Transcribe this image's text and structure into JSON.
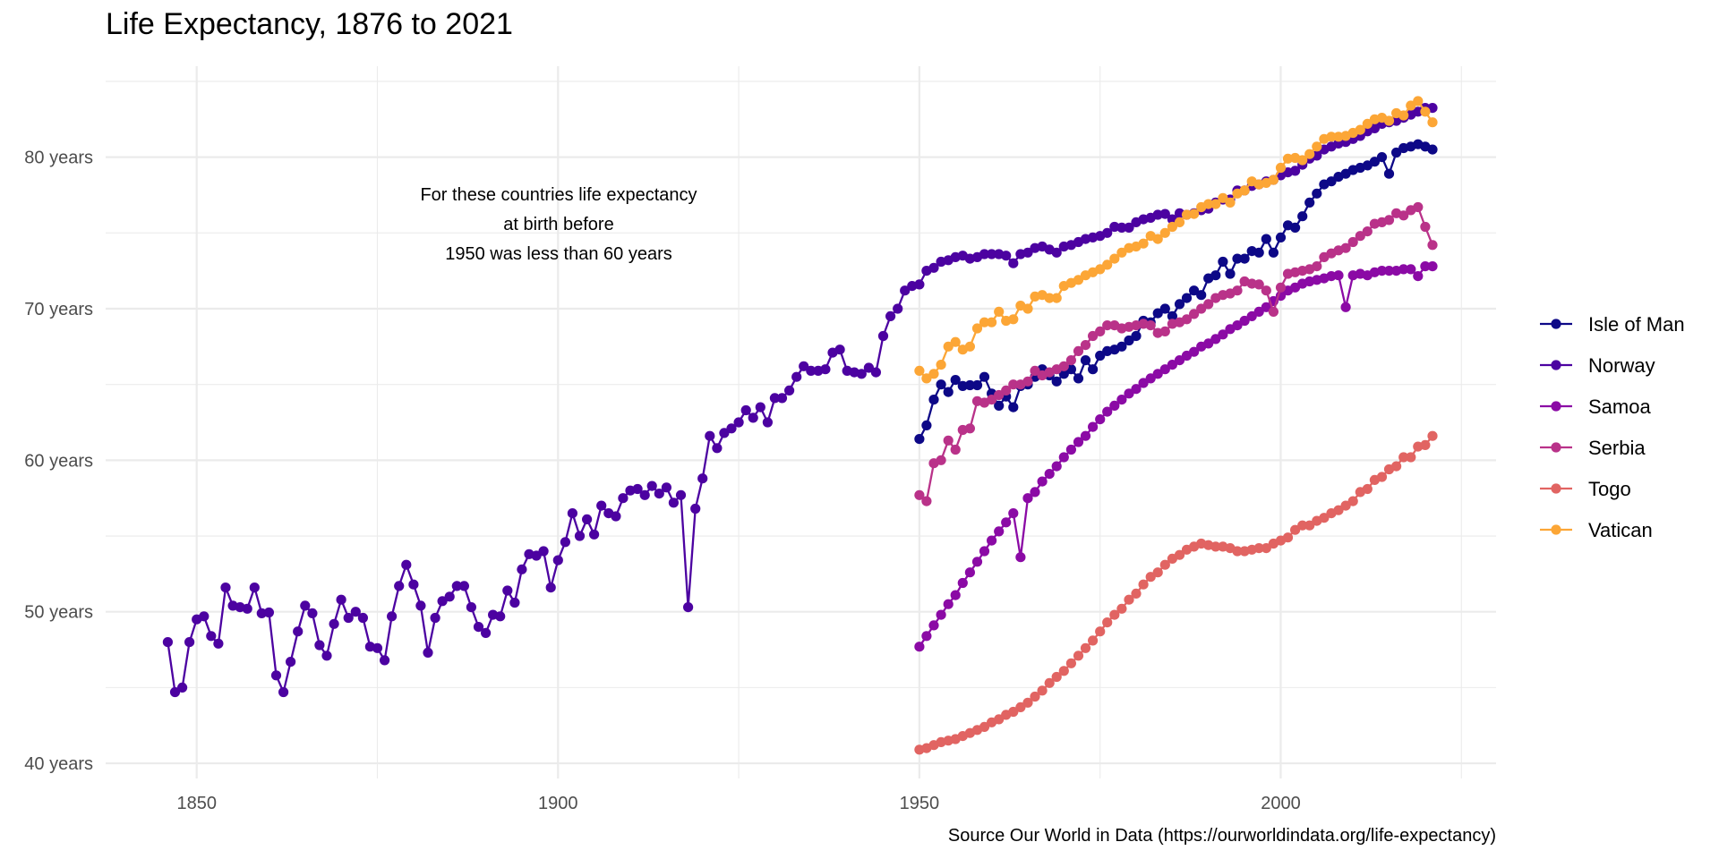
{
  "chart_data": {
    "type": "line",
    "title": "Life Expectancy, 1876 to 2021",
    "xlabel": "",
    "ylabel": "",
    "caption": "Source Our World in Data (https://ourworldindata.org/life-expectancy)",
    "annotation": [
      "For these countries life expectancy",
      "at birth before",
      "1950 was less than 60 years"
    ],
    "annotation_at": {
      "x": 1900,
      "y": 75.9
    },
    "xlim": [
      1837.4,
      2029.8
    ],
    "ylim": [
      39.0,
      86.0
    ],
    "x_ticks": [
      1850,
      1900,
      1950,
      2000
    ],
    "x_tick_labels": [
      "1850",
      "1900",
      "1950",
      "2000"
    ],
    "x_minor_ticks": [
      1875,
      1925,
      1975,
      2025
    ],
    "y_ticks": [
      40,
      50,
      60,
      70,
      80
    ],
    "y_tick_labels": [
      "40 years",
      "50 years",
      "60 years",
      "70 years",
      "80 years"
    ],
    "y_minor_ticks": [
      45,
      55,
      65,
      75,
      85
    ],
    "grid": true,
    "legend_position": "right",
    "series": [
      {
        "name": "Isle of Man",
        "color": "#0d0887",
        "x_start": 1950,
        "values": [
          61.4,
          62.3,
          64.0,
          65.0,
          64.5,
          65.3,
          64.9,
          64.95,
          64.95,
          65.5,
          64.4,
          63.6,
          64.2,
          63.5,
          64.9,
          65.0,
          65.5,
          66.0,
          65.6,
          65.2,
          65.7,
          66.0,
          65.4,
          66.6,
          66.0,
          66.9,
          67.2,
          67.3,
          67.5,
          67.9,
          68.2,
          69.2,
          69.1,
          69.7,
          70.0,
          69.5,
          70.3,
          70.7,
          71.2,
          70.9,
          72.0,
          72.2,
          73.1,
          72.3,
          73.3,
          73.3,
          73.8,
          73.7,
          74.6,
          73.7,
          74.7,
          75.5,
          75.35,
          76.1,
          77.0,
          77.6,
          78.2,
          78.4,
          78.7,
          78.9,
          79.15,
          79.3,
          79.45,
          79.7,
          80.0,
          78.9,
          80.3,
          80.6,
          80.7,
          80.85,
          80.7,
          80.5
        ]
      },
      {
        "name": "Norway",
        "color": "#4c02a1",
        "x_start": 1846,
        "values": [
          48.0,
          44.7,
          45.0,
          48.0,
          49.5,
          49.7,
          48.4,
          47.9,
          51.6,
          50.4,
          50.3,
          50.2,
          51.6,
          49.9,
          49.95,
          45.8,
          44.7,
          46.7,
          48.7,
          50.4,
          49.9,
          47.8,
          47.1,
          49.2,
          50.8,
          49.6,
          50.0,
          49.6,
          47.7,
          47.6,
          46.8,
          49.7,
          51.7,
          53.1,
          51.8,
          50.4,
          47.3,
          49.6,
          50.7,
          51.0,
          51.7,
          51.7,
          50.3,
          49.0,
          48.6,
          49.8,
          49.7,
          51.4,
          50.6,
          52.8,
          53.8,
          53.7,
          54.0,
          51.6,
          53.4,
          54.6,
          56.5,
          55.0,
          56.1,
          55.1,
          57.0,
          56.5,
          56.3,
          57.5,
          58.0,
          58.1,
          57.7,
          58.3,
          57.8,
          58.2,
          57.2,
          57.7,
          50.3,
          56.8,
          58.8,
          61.6,
          60.8,
          61.8,
          62.1,
          62.5,
          63.3,
          62.8,
          63.5,
          62.5,
          64.1,
          64.1,
          64.6,
          65.5,
          66.2,
          65.9,
          65.9,
          66.0,
          67.1,
          67.3,
          65.9,
          65.8,
          65.7,
          66.1,
          65.8,
          68.2,
          69.5,
          70.0,
          71.2,
          71.5,
          71.6,
          72.5,
          72.7,
          73.1,
          73.2,
          73.4,
          73.5,
          73.3,
          73.4,
          73.6,
          73.6,
          73.6,
          73.5,
          73.0,
          73.6,
          73.7,
          74.0,
          74.1,
          73.9,
          73.7,
          74.1,
          74.2,
          74.4,
          74.6,
          74.7,
          74.8,
          75.0,
          75.4,
          75.35,
          75.35,
          75.7,
          75.9,
          76.0,
          76.2,
          76.25,
          75.9,
          76.3,
          76.2,
          76.3,
          76.5,
          76.6,
          77.0,
          77.2,
          77.2,
          77.8,
          77.8,
          78.1,
          78.2,
          78.4,
          78.5,
          78.8,
          79.0,
          79.1,
          79.5,
          79.9,
          80.1,
          80.5,
          80.7,
          80.9,
          81.0,
          81.2,
          81.4,
          81.7,
          81.9,
          82.2,
          82.3,
          82.4,
          82.6,
          82.8,
          83.0,
          83.25,
          83.25
        ]
      },
      {
        "name": "Samoa",
        "color": "#8b0aa5",
        "x_start": 1950,
        "values": [
          47.7,
          48.4,
          49.1,
          49.8,
          50.5,
          51.1,
          51.9,
          52.6,
          53.3,
          54.0,
          54.7,
          55.3,
          55.9,
          56.5,
          53.6,
          57.5,
          57.9,
          58.6,
          59.1,
          59.6,
          60.2,
          60.7,
          61.2,
          61.6,
          62.2,
          62.7,
          63.2,
          63.6,
          64.0,
          64.4,
          64.7,
          65.1,
          65.4,
          65.7,
          66.0,
          66.3,
          66.6,
          66.9,
          67.15,
          67.5,
          67.7,
          68.0,
          68.3,
          68.65,
          68.9,
          69.2,
          69.5,
          69.8,
          70.1,
          70.5,
          70.85,
          71.2,
          71.4,
          71.65,
          71.8,
          71.9,
          72.0,
          72.15,
          72.2,
          70.1,
          72.2,
          72.3,
          72.2,
          72.4,
          72.5,
          72.5,
          72.5,
          72.6,
          72.6,
          72.15,
          72.8,
          72.8
        ]
      },
      {
        "name": "Serbia",
        "color": "#b93289",
        "x_start": 1950,
        "values": [
          57.7,
          57.3,
          59.8,
          60.0,
          61.3,
          60.7,
          62.0,
          62.1,
          63.9,
          63.8,
          64.0,
          64.3,
          64.6,
          65.0,
          65.0,
          65.2,
          65.9,
          65.6,
          65.8,
          66.0,
          66.2,
          66.6,
          67.2,
          67.6,
          68.2,
          68.5,
          68.9,
          68.9,
          68.7,
          68.8,
          68.9,
          69.0,
          68.9,
          68.4,
          68.5,
          69.0,
          69.1,
          69.3,
          69.65,
          70.0,
          70.3,
          70.7,
          70.9,
          71.0,
          71.2,
          71.8,
          71.65,
          71.6,
          71.2,
          69.8,
          71.4,
          72.3,
          72.4,
          72.5,
          72.6,
          72.8,
          73.4,
          73.65,
          73.85,
          74.0,
          74.4,
          74.8,
          75.1,
          75.6,
          75.7,
          75.85,
          76.3,
          76.15,
          76.5,
          76.7,
          75.4,
          74.2
        ]
      },
      {
        "name": "Togo",
        "color": "#e16462",
        "x_start": 1950,
        "values": [
          40.9,
          41.0,
          41.2,
          41.4,
          41.5,
          41.6,
          41.8,
          42.0,
          42.2,
          42.4,
          42.7,
          42.9,
          43.2,
          43.4,
          43.7,
          44.0,
          44.4,
          44.8,
          45.3,
          45.7,
          46.1,
          46.6,
          47.1,
          47.6,
          48.1,
          48.7,
          49.3,
          49.8,
          50.2,
          50.8,
          51.2,
          51.8,
          52.3,
          52.6,
          53.1,
          53.5,
          53.75,
          54.1,
          54.3,
          54.5,
          54.4,
          54.3,
          54.3,
          54.2,
          54.0,
          54.0,
          54.1,
          54.2,
          54.2,
          54.5,
          54.7,
          54.9,
          55.4,
          55.7,
          55.7,
          56.0,
          56.2,
          56.5,
          56.7,
          57.0,
          57.3,
          57.9,
          58.1,
          58.7,
          58.9,
          59.4,
          59.6,
          60.2,
          60.2,
          60.9,
          61.0,
          61.6
        ]
      },
      {
        "name": "Vatican",
        "color": "#fca636",
        "x_start": 1950,
        "values": [
          65.9,
          65.4,
          65.7,
          66.3,
          67.5,
          67.8,
          67.3,
          67.5,
          68.7,
          69.1,
          69.1,
          69.8,
          69.2,
          69.3,
          70.2,
          70.0,
          70.8,
          70.9,
          70.7,
          70.7,
          71.5,
          71.7,
          71.9,
          72.2,
          72.4,
          72.6,
          72.9,
          73.3,
          73.7,
          74.0,
          74.1,
          74.3,
          74.8,
          74.6,
          75.0,
          75.4,
          75.7,
          76.2,
          76.25,
          76.7,
          76.9,
          76.9,
          77.3,
          77.0,
          77.6,
          77.8,
          78.4,
          78.2,
          78.3,
          78.5,
          79.3,
          79.9,
          79.95,
          79.8,
          80.2,
          80.7,
          81.2,
          81.35,
          81.35,
          81.4,
          81.6,
          81.8,
          82.2,
          82.5,
          82.6,
          82.4,
          82.9,
          82.75,
          83.4,
          83.7,
          83.0,
          82.3
        ]
      }
    ]
  }
}
